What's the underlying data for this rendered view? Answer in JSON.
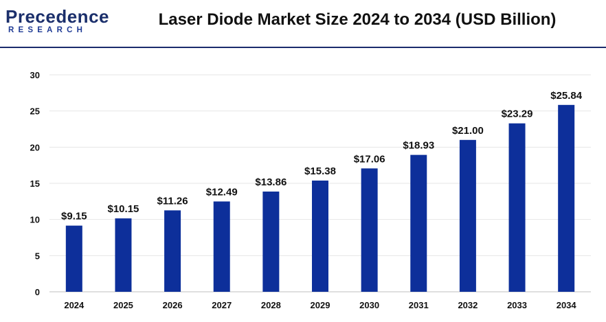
{
  "header": {
    "logo": {
      "word": "Precedence",
      "sub": "RESEARCH"
    },
    "title": "Laser Diode Market Size 2024 to 2034 (USD Billion)"
  },
  "colors": {
    "bar": "#0d2f9a",
    "grid": "#e6e6e6",
    "rule": "#1a2a6c",
    "logo": "#1b2f6b"
  },
  "chart_data": {
    "type": "bar",
    "title": "Laser Diode Market Size 2024 to 2034 (USD Billion)",
    "categories": [
      "2024",
      "2025",
      "2026",
      "2027",
      "2028",
      "2029",
      "2030",
      "2031",
      "2032",
      "2033",
      "2034"
    ],
    "values": [
      9.15,
      10.15,
      11.26,
      12.49,
      13.86,
      15.38,
      17.06,
      18.93,
      21.0,
      23.29,
      25.84
    ],
    "data_labels": [
      "$9.15",
      "$10.15",
      "$11.26",
      "$12.49",
      "$13.86",
      "$15.38",
      "$17.06",
      "$18.93",
      "$21.00",
      "$23.29",
      "$25.84"
    ],
    "ylim": [
      0,
      30
    ],
    "yticks": [
      0,
      5,
      10,
      15,
      20,
      25,
      30
    ],
    "grid": true,
    "xlabel": "",
    "ylabel": ""
  }
}
